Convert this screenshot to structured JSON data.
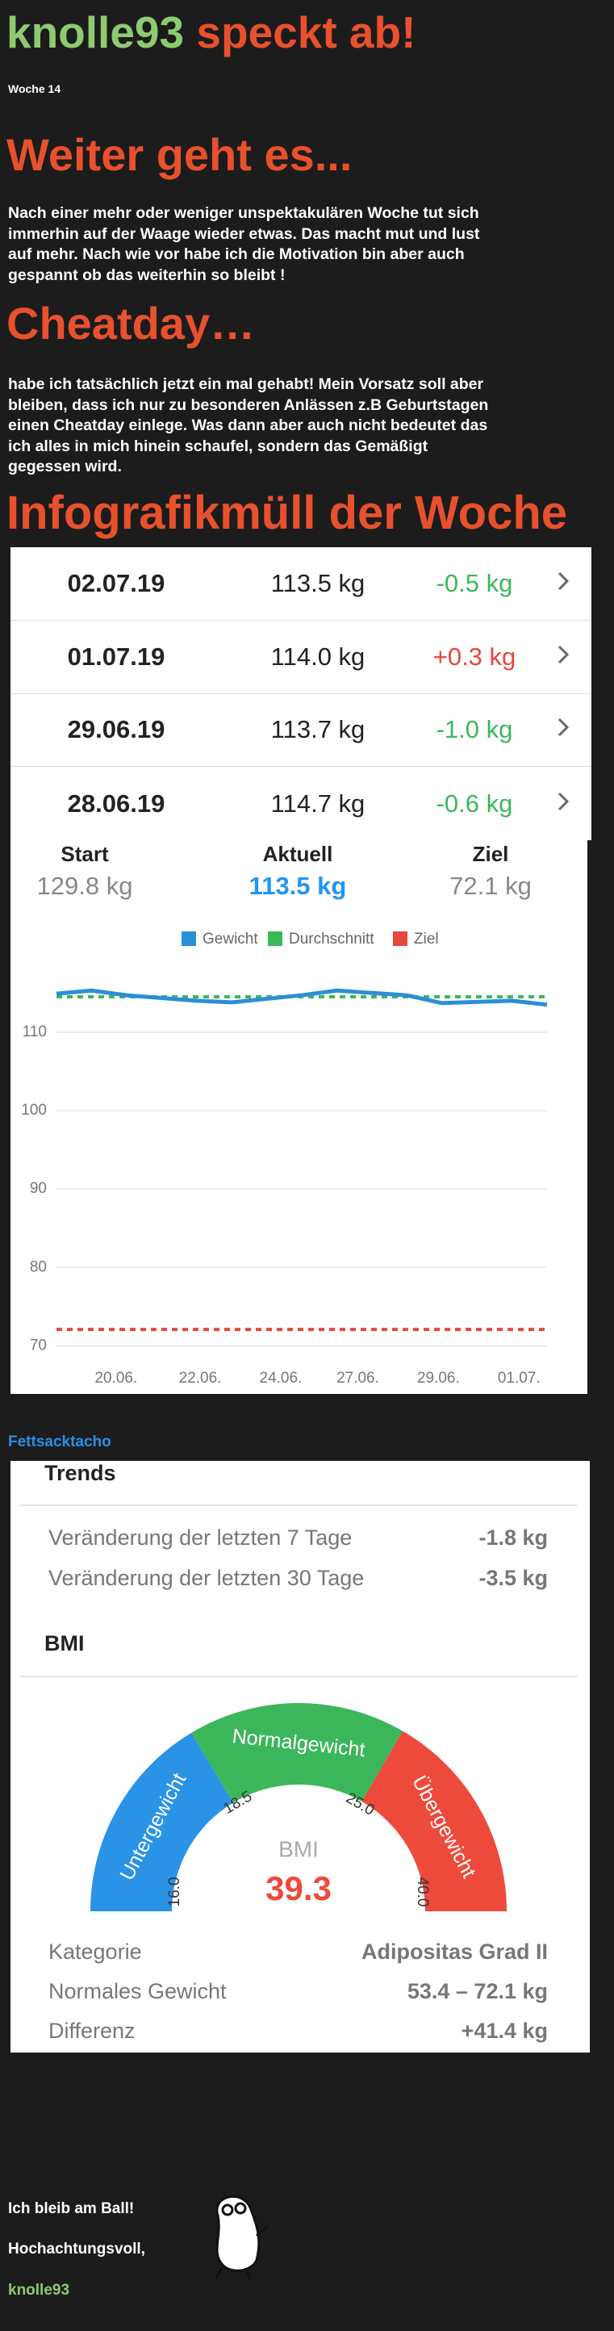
{
  "header": {
    "name": "knolle93",
    "title": "speckt ab!",
    "week": "Woche 14"
  },
  "sections": [
    {
      "heading": "Weiter geht es...",
      "text": "Nach einer mehr oder weniger unspektakulären Woche tut sich immerhin auf der Waage wieder etwas. Das macht mut und lust auf mehr. Nach wie vor habe ich die Motivation bin aber auch gespannt ob das weiterhin so bleibt !"
    },
    {
      "heading": "Cheatday…",
      "text": "habe ich tatsächlich jetzt ein mal gehabt! Mein Vorsatz soll aber bleiben, dass ich nur zu besonderen Anlässen z.B Geburtstagen einen Cheatday einlege. Was dann aber auch nicht bedeutet das ich alles in mich hinein schaufel, sondern das Gemäßigt gegessen wird."
    },
    {
      "heading": "Infografikmüll der Woche"
    }
  ],
  "weight_table": {
    "rows": [
      [
        "02.07.19",
        "113.5 kg",
        "-0.5 kg"
      ],
      [
        "01.07.19",
        "114.0 kg",
        "+0.3 kg"
      ],
      [
        "29.06.19",
        "113.7 kg",
        "-1.0 kg"
      ],
      [
        "28.06.19",
        "114.7 kg",
        "-0.6 kg"
      ]
    ]
  },
  "chart_header": [
    {
      "label": "Start",
      "value": "129.8 kg"
    },
    {
      "label": "Aktuell",
      "value": "113.5 kg"
    },
    {
      "label": "Ziel",
      "value": "72.1 kg"
    }
  ],
  "chart_data": {
    "type": "line",
    "x": [
      0,
      1,
      2,
      4,
      5,
      7,
      8,
      10,
      11,
      13,
      14
    ],
    "series": [
      {
        "name": "Gewicht",
        "color": "#2b8fd6",
        "values": [
          114.9,
          115.3,
          114.7,
          114.0,
          113.8,
          114.7,
          115.3,
          114.7,
          113.7,
          114.0,
          113.5
        ]
      }
    ],
    "hlines": [
      {
        "name": "Durchschnitt",
        "color": "#3bb85a",
        "value": 114.5
      },
      {
        "name": "Ziel",
        "color": "#e8473b",
        "value": 72.1
      }
    ],
    "xlim": [
      0,
      14
    ],
    "xticks": [
      {
        "value": 1.7,
        "label": "20.06."
      },
      {
        "value": 4.1,
        "label": "22.06."
      },
      {
        "value": 6.4,
        "label": "24.06."
      },
      {
        "value": 8.6,
        "label": "27.06."
      },
      {
        "value": 10.9,
        "label": "29.06."
      },
      {
        "value": 13.2,
        "label": "01.07."
      }
    ],
    "ylim": [
      68,
      118
    ],
    "yticks": [
      70,
      80,
      90,
      100,
      110
    ],
    "grid": true
  },
  "tacho_title": "Fettsacktacho",
  "trends": {
    "title": "Trends",
    "rows": [
      [
        "Veränderung der letzten 7 Tage",
        "-1.8 kg"
      ],
      [
        "Veränderung der letzten 30 Tage",
        "-3.5 kg"
      ]
    ]
  },
  "bmi": {
    "title": "BMI",
    "label": "BMI",
    "value": "39.3",
    "zones": [
      "Untergewicht",
      "Normalgewicht",
      "Übergewicht"
    ],
    "ticks": [
      "16.0",
      "18.5",
      "25.0",
      "40.0"
    ],
    "rows": [
      [
        "Kategorie",
        "Adipositas Grad II"
      ],
      [
        "Normales Gewicht",
        "53.4 – 72.1 kg"
      ],
      [
        "Differenz",
        "+41.4 kg"
      ]
    ]
  },
  "footer": [
    "Ich bleib am Ball!",
    "Hochachtungsvoll,",
    "knolle93"
  ]
}
